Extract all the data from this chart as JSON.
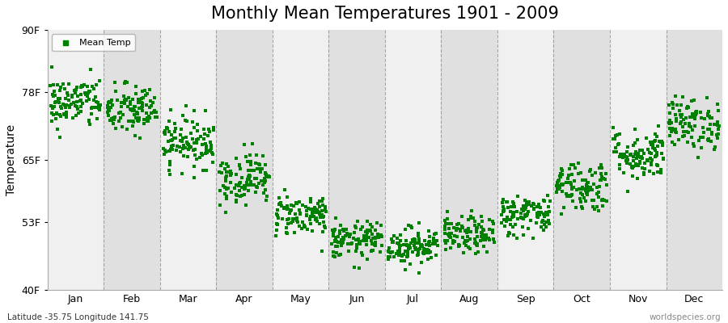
{
  "title": "Monthly Mean Temperatures 1901 - 2009",
  "ylabel": "Temperature",
  "xlabel_bottom_left": "Latitude -35.75 Longitude 141.75",
  "xlabel_bottom_right": "worldspecies.org",
  "yticks": [
    40,
    53,
    65,
    78,
    90
  ],
  "ytick_labels": [
    "40F",
    "53F",
    "65F",
    "78F",
    "90F"
  ],
  "months": [
    "Jan",
    "Feb",
    "Mar",
    "Apr",
    "May",
    "Jun",
    "Jul",
    "Aug",
    "Sep",
    "Oct",
    "Nov",
    "Dec"
  ],
  "month_mean_temps_F": [
    76.0,
    74.5,
    68.5,
    61.5,
    54.5,
    49.5,
    48.5,
    50.5,
    54.5,
    60.0,
    66.0,
    72.0
  ],
  "month_std_temps_F": [
    2.5,
    2.5,
    2.5,
    2.5,
    2.0,
    1.8,
    1.8,
    1.8,
    2.0,
    2.5,
    2.5,
    2.5
  ],
  "years": 109,
  "dot_color": "#008000",
  "fig_background_color": "#ffffff",
  "plot_background_color": "#f0f0f0",
  "band_color_light": "#f0f0f0",
  "band_color_dark": "#e0e0e0",
  "dashed_line_color": "#888888",
  "legend_label": "Mean Temp",
  "title_fontsize": 15,
  "axis_fontsize": 10,
  "tick_fontsize": 9,
  "marker_size": 3,
  "seed": 42
}
